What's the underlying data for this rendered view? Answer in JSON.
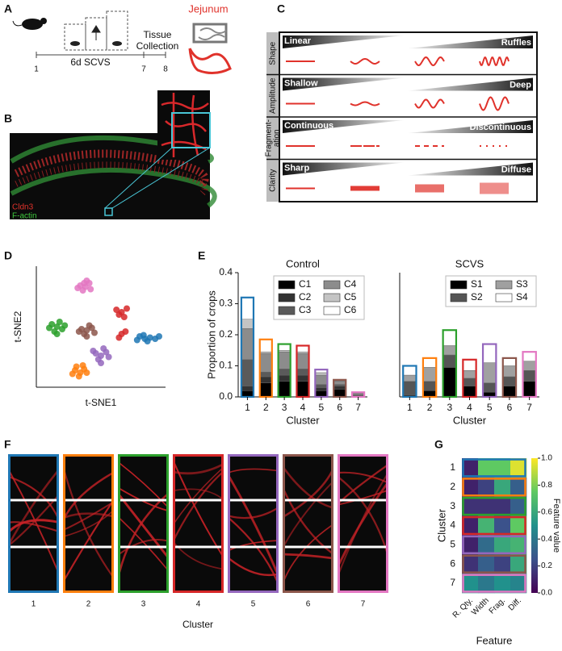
{
  "panel_labels": [
    "A",
    "B",
    "C",
    "D",
    "E",
    "F",
    "G"
  ],
  "panel_a": {
    "day_labels": [
      "1",
      "7",
      "8"
    ],
    "period": "6d SCVS",
    "collection": [
      "Tissue",
      "Collection"
    ],
    "tissue": "Jejunum"
  },
  "panel_b": {
    "stains": [
      {
        "text": "Cldn3",
        "color": "#e0322b"
      },
      {
        "text": "F-actin",
        "color": "#3ec83e"
      }
    ]
  },
  "panel_c": {
    "rows": [
      {
        "feature": [
          "Shape"
        ],
        "low": "Linear",
        "high": "Ruffles"
      },
      {
        "feature": [
          "Amplitude"
        ],
        "low": "Shallow",
        "high": "Deep"
      },
      {
        "feature": [
          "Fragment-",
          "ation"
        ],
        "low": "Continuous",
        "high": "Discontinuous"
      },
      {
        "feature": [
          "Clarity"
        ],
        "low": "Sharp",
        "high": "Diffuse"
      }
    ]
  },
  "panel_f": {
    "clusters": [
      "1",
      "2",
      "3",
      "4",
      "5",
      "6",
      "7"
    ],
    "colors": [
      "#1f77b4",
      "#ff7f0e",
      "#2ca02c",
      "#d62728",
      "#9467bd",
      "#8c564b",
      "#e377c2"
    ],
    "xlabel": "Cluster"
  },
  "chart_data": [
    {
      "type": "scatter",
      "xlabel": "t-SNE1",
      "ylabel": "t-SNE2",
      "xlim": [
        0,
        100
      ],
      "ylim": [
        0,
        100
      ],
      "series": [
        {
          "color": "#1f77b4",
          "x": [
            80,
            84,
            88,
            92,
            86,
            78,
            95,
            83
          ],
          "y": [
            42,
            40,
            41,
            40,
            38,
            39,
            42,
            43
          ]
        },
        {
          "color": "#ff7f0e",
          "x": [
            30,
            34,
            37,
            33,
            36,
            31,
            39,
            28
          ],
          "y": [
            14,
            12,
            15,
            9,
            18,
            17,
            12,
            11
          ]
        },
        {
          "color": "#2ca02c",
          "x": [
            12,
            16,
            20,
            14,
            18,
            10,
            22,
            16
          ],
          "y": [
            52,
            50,
            48,
            46,
            54,
            49,
            51,
            44
          ]
        },
        {
          "color": "#d62728",
          "x": [
            62,
            66,
            70,
            64,
            68,
            66,
            64,
            69
          ],
          "y": [
            64,
            62,
            65,
            60,
            58,
            44,
            41,
            46
          ]
        },
        {
          "color": "#9467bd",
          "x": [
            46,
            50,
            54,
            48,
            52,
            44,
            56,
            50
          ],
          "y": [
            28,
            26,
            29,
            23,
            32,
            30,
            25,
            20
          ]
        },
        {
          "color": "#8c564b",
          "x": [
            35,
            39,
            43,
            37,
            41,
            33,
            45,
            39
          ],
          "y": [
            48,
            47,
            49,
            44,
            51,
            46,
            45,
            42
          ]
        },
        {
          "color": "#e377c2",
          "x": [
            34,
            38,
            41,
            36,
            39,
            32,
            42,
            37
          ],
          "y": [
            84,
            83,
            86,
            80,
            88,
            82,
            81,
            86
          ]
        }
      ]
    },
    {
      "type": "bar",
      "stacked": true,
      "title": "Control",
      "ylabel": "Proportion of crops",
      "xlabel": "Cluster",
      "categories": [
        "1",
        "2",
        "3",
        "4",
        "5",
        "6",
        "7"
      ],
      "category_colors": [
        "#1f77b4",
        "#ff7f0e",
        "#2ca02c",
        "#d62728",
        "#9467bd",
        "#8c564b",
        "#e377c2"
      ],
      "ylim": [
        0,
        0.4
      ],
      "yticks": [
        {
          "value": 0,
          "label": "0.0"
        },
        0.1,
        0.2,
        0.3,
        0.4
      ],
      "legend": "upper right",
      "series": [
        {
          "name": "C1",
          "color": "#000000",
          "values": [
            0.02,
            0.045,
            0.05,
            0.05,
            0.02,
            0.025,
            0.003
          ]
        },
        {
          "name": "C2",
          "color": "#333333",
          "values": [
            0.015,
            0.02,
            0.02,
            0.02,
            0.01,
            0.01,
            0.002
          ]
        },
        {
          "name": "C3",
          "color": "#5a5a5a",
          "values": [
            0.085,
            0.015,
            0.02,
            0.02,
            0.01,
            0.005,
            0.002
          ]
        },
        {
          "name": "C4",
          "color": "#8c8c8c",
          "values": [
            0.1,
            0.06,
            0.055,
            0.05,
            0.03,
            0.01,
            0.005
          ]
        },
        {
          "name": "C5",
          "color": "#c4c4c4",
          "values": [
            0.03,
            0.005,
            0.005,
            0.005,
            0.008,
            0.002,
            0.001
          ]
        },
        {
          "name": "C6",
          "color": "#ffffff",
          "values": [
            0.07,
            0.04,
            0.02,
            0.02,
            0.01,
            0.003,
            0.002
          ]
        }
      ]
    },
    {
      "type": "bar",
      "stacked": true,
      "title": "SCVS",
      "xlabel": "Cluster",
      "categories": [
        "1",
        "2",
        "3",
        "4",
        "5",
        "6",
        "7"
      ],
      "category_colors": [
        "#1f77b4",
        "#ff7f0e",
        "#2ca02c",
        "#d62728",
        "#9467bd",
        "#8c564b",
        "#e377c2"
      ],
      "ylim": [
        0,
        0.4
      ],
      "legend": "upper right",
      "series": [
        {
          "name": "S1",
          "color": "#000000",
          "values": [
            0.005,
            0.02,
            0.095,
            0.035,
            0.015,
            0.035,
            0.05
          ]
        },
        {
          "name": "S2",
          "color": "#555555",
          "values": [
            0.045,
            0.03,
            0.04,
            0.025,
            0.03,
            0.03,
            0.035
          ]
        },
        {
          "name": "S3",
          "color": "#a0a0a0",
          "values": [
            0.02,
            0.045,
            0.03,
            0.025,
            0.065,
            0.035,
            0.03
          ]
        },
        {
          "name": "S4",
          "color": "#ffffff",
          "values": [
            0.03,
            0.03,
            0.05,
            0.035,
            0.06,
            0.025,
            0.03
          ]
        }
      ]
    },
    {
      "type": "heatmap",
      "xlabel": "Feature",
      "ylabel": "Cluster",
      "rows": [
        "1",
        "2",
        "3",
        "4",
        "5",
        "6",
        "7"
      ],
      "row_colors": [
        "#1f77b4",
        "#ff7f0e",
        "#2ca02c",
        "#d62728",
        "#9467bd",
        "#8c564b",
        "#e377c2"
      ],
      "columns": [
        "R. Qty.",
        "Width",
        "Frag.",
        "Diff."
      ],
      "values": [
        [
          0.1,
          0.75,
          0.75,
          0.95
        ],
        [
          0.1,
          0.2,
          0.6,
          0.3
        ],
        [
          0.15,
          0.15,
          0.15,
          0.3
        ],
        [
          0.1,
          0.65,
          0.25,
          0.75
        ],
        [
          0.1,
          0.35,
          0.6,
          0.65
        ],
        [
          0.15,
          0.3,
          0.2,
          0.6
        ],
        [
          0.5,
          0.4,
          0.5,
          0.45
        ]
      ],
      "colorbar": {
        "label": "Feature value",
        "lim": [
          0,
          1
        ],
        "ticks": [
          {
            "value": 0,
            "label": "0.0"
          },
          0.2,
          0.4,
          0.6,
          0.8,
          {
            "value": 1,
            "label": "1.0"
          }
        ]
      }
    }
  ]
}
